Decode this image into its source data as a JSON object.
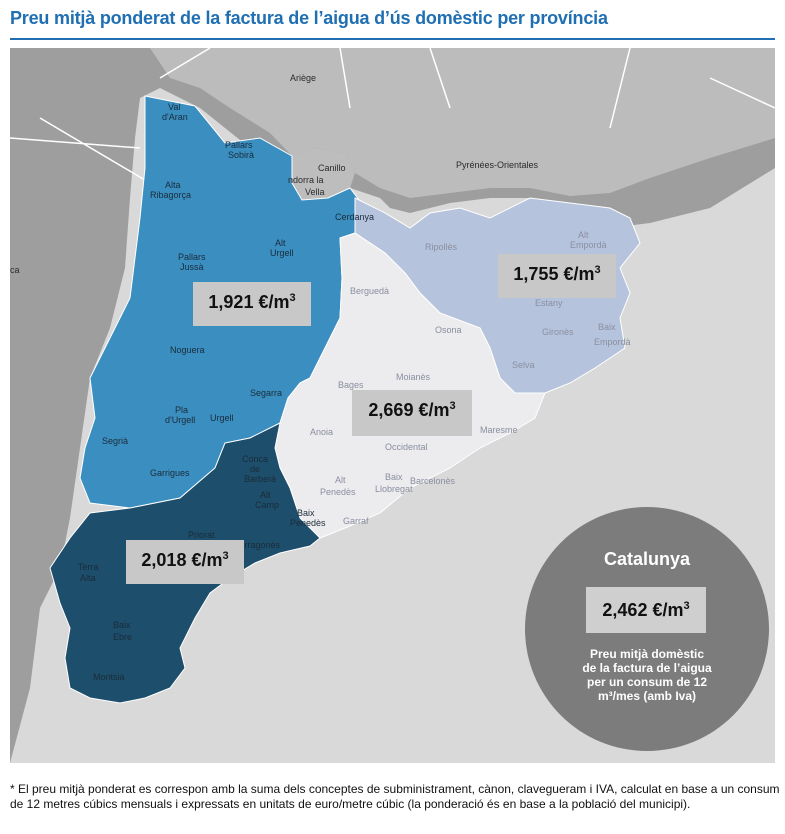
{
  "title": "Preu mitjà ponderat de la factura de l’aigua d’ús domèstic per província",
  "colors": {
    "lleida": "#3b8ec0",
    "tarragona": "#1d4e6b",
    "barcelona": "#ecebee",
    "girona": "#b6c3dd",
    "land_outside": "#9e9e9e",
    "sea": "#d9d9d9"
  },
  "provinces": {
    "lleida": {
      "price": "1,921 €/m",
      "sup": "3"
    },
    "girona": {
      "price": "1,755 €/m",
      "sup": "3"
    },
    "barcelona": {
      "price": "2,669 €/m",
      "sup": "3"
    },
    "tarragona": {
      "price": "2,018 €/m",
      "sup": "3"
    }
  },
  "map_labels": {
    "ariege": "Ariège",
    "canillo": "Canillo",
    "andorra_1": "ndorra la",
    "andorra_2": "Vella",
    "pyrenees": "Pyrénées-Orientales",
    "ca": "ca",
    "val_1": "Val",
    "val_2": "d'Aran",
    "pallars_sobira_1": "Pallars",
    "pallars_sobira_2": "Sobirà",
    "alta_rib_1": "Alta",
    "alta_rib_2": "Ribagorça",
    "pallars_jussa_1": "Pallars",
    "pallars_jussa_2": "Jussà",
    "alt_urgell_1": "Alt",
    "alt_urgell_2": "Urgell",
    "cerdanya": "Cerdanya",
    "ripolles": "Ripollès",
    "alt_emporda_1": "Alt",
    "alt_emporda_2": "Empordà",
    "bergueda": "Berguedà",
    "osona": "Osona",
    "estany": "Estany",
    "girones": "Gironès",
    "baix_emporda_1": "Baix",
    "baix_emporda_2": "Empordà",
    "selva": "Selva",
    "noguera": "Noguera",
    "segarra": "Segarra",
    "bages": "Bages",
    "moianes": "Moianès",
    "pla_urgell_1": "Pla",
    "pla_urgell_2": "d'Urgell",
    "urgell": "Urgell",
    "segria": "Segrià",
    "garrigues": "Garrigues",
    "anoia": "Anoia",
    "occidental": "Occidental",
    "maresme": "Maresme",
    "conca_1": "Conca",
    "conca_2": "de",
    "conca_3": "Barberà",
    "alt_camp_1": "Alt",
    "alt_camp_2": "Camp",
    "alt_penedes_1": "Alt",
    "alt_penedes_2": "Penedès",
    "baix_llob_1": "Baix",
    "baix_llob_2": "Llobregat",
    "barcelones": "Barcelonès",
    "garraf": "Garraf",
    "baix_pen_1": "Baix",
    "baix_pen_2": "Penedès",
    "priorat": "Priorat",
    "tarragones": "Tarragonès",
    "terra_alta_1": "Terra",
    "terra_alta_2": "Alta",
    "baix_ebre_1": "Baix",
    "baix_ebre_2": "Ebre",
    "montsia": "Montsià"
  },
  "catalunya": {
    "title": "Catalunya",
    "price": "2,462 €/m",
    "sup": "3",
    "desc_1": "Preu mitjà domèstic",
    "desc_2": "de la factura de l’aigua",
    "desc_3": "per un consum de 12",
    "desc_4": "m³/mes (amb Iva)"
  },
  "footnote": "* El preu mitjà ponderat es correspon amb la suma dels conceptes de subministrament, cànon, clavegueram i IVA, calculat en base a un consum de 12 metres cúbics mensuals i expressats en unitats de euro/metre cúbic (la ponderació és en base a la població del municipi)."
}
